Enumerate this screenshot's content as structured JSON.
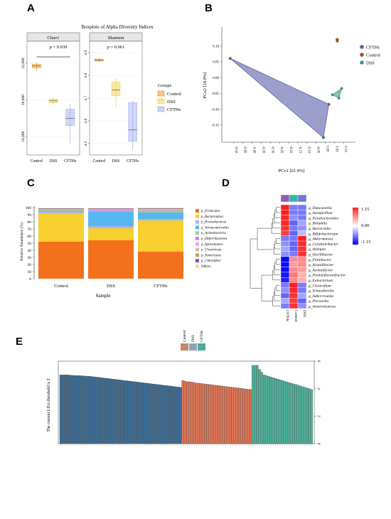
{
  "panel_letters": [
    "A",
    "B",
    "C",
    "D",
    "E"
  ],
  "chart_data": [
    {
      "panel": "A",
      "type": "boxplot",
      "title": "Boxplots of Alpha Diversity Indices",
      "legend_title": "Groups",
      "legend_position": "right",
      "groups": [
        {
          "name": "Control",
          "color": "#e8a33c"
        },
        {
          "name": "DSS",
          "color": "#f3d35a"
        },
        {
          "name": "CFTHs",
          "color": "#a9b6f2"
        }
      ],
      "facets": [
        {
          "name": "Chao1",
          "ylim": [
            17000,
            23200
          ],
          "yticks": [
            18000,
            20000,
            22000
          ],
          "ytick_labels": [
            "18,000",
            "20,000",
            "22,000"
          ],
          "annotation": "p = 0.039",
          "annotation_p": "p",
          "annotation_val": "= 0.039",
          "boxes": [
            {
              "group": "Control",
              "q1": 21750,
              "median": 21850,
              "q3": 21950,
              "min": 21600,
              "max": 22050
            },
            {
              "group": "DSS",
              "q1": 19850,
              "median": 19950,
              "q3": 20050,
              "min": 19700,
              "max": 20150
            },
            {
              "group": "CFTHs",
              "q1": 18600,
              "median": 19000,
              "q3": 19500,
              "min": 17600,
              "max": 19800
            }
          ]
        },
        {
          "name": "Shannon",
          "ylim": [
            4.45,
            4.95
          ],
          "yticks": [
            4.5,
            4.6,
            4.7,
            4.8,
            4.9
          ],
          "ytick_labels": [
            "4.5",
            "4.6",
            "4.7",
            "4.8",
            "4.9"
          ],
          "annotation": "p = 0.061",
          "annotation_p": "p",
          "annotation_val": "= 0.061",
          "boxes": [
            {
              "group": "Control",
              "q1": 4.862,
              "median": 4.868,
              "q3": 4.872,
              "min": 4.858,
              "max": 4.876
            },
            {
              "group": "DSS",
              "q1": 4.71,
              "median": 4.735,
              "q3": 4.77,
              "min": 4.66,
              "max": 4.79
            },
            {
              "group": "CFTHs",
              "q1": 4.51,
              "median": 4.56,
              "q3": 4.68,
              "min": 4.47,
              "max": 4.69
            }
          ]
        }
      ],
      "x_categories": [
        "Control",
        "DSS",
        "CFTHs"
      ]
    },
    {
      "panel": "B",
      "type": "scatter",
      "xlabel": "PCo1 [61.9%]",
      "ylabel": "PCo2 [18.9%]",
      "xlim": [
        -0.55,
        0.15
      ],
      "ylim": [
        -0.2,
        0.15
      ],
      "xticks": [
        -0.5,
        -0.45,
        -0.4,
        -0.35,
        -0.3,
        -0.25,
        -0.2,
        -0.15,
        -0.1,
        -0.05,
        0,
        0.05,
        0.1
      ],
      "xtick_labels": [
        "-0.50",
        "-0.45",
        "-0.40",
        "-0.35",
        "-0.30",
        "-0.25",
        "-0.20",
        "-0.15",
        "-0.10",
        "-0.05",
        "0.00",
        "0.05",
        "0.10"
      ],
      "yticks": [
        -0.15,
        -0.1,
        -0.05,
        0,
        0.05,
        0.1
      ],
      "ytick_labels": [
        "-0.15",
        "-0.10",
        "-0.05",
        "0.00",
        "0.05",
        "0.10"
      ],
      "legend_position": "right",
      "series": [
        {
          "name": "CFTHs",
          "color": "#5a5fa8",
          "points": [
            [
              -0.52,
              0.06
            ],
            [
              -0.01,
              -0.19
            ],
            [
              0.02,
              -0.085
            ]
          ]
        },
        {
          "name": "Control",
          "color": "#8b5a2b",
          "points": [
            [
              0.065,
              0.12
            ],
            [
              0.066,
              0.115
            ],
            [
              0.067,
              0.118
            ]
          ]
        },
        {
          "name": "DSS",
          "color": "#3a9a7a",
          "points": [
            [
              0.04,
              -0.055
            ],
            [
              0.075,
              -0.065
            ],
            [
              0.09,
              -0.035
            ]
          ]
        }
      ]
    },
    {
      "panel": "C",
      "type": "stacked-bar",
      "xlabel": "Sample",
      "ylabel": "Relative Abundance (%)",
      "ylim": [
        0,
        100
      ],
      "yticks": [
        0,
        10,
        20,
        30,
        40,
        50,
        60,
        70,
        80,
        90,
        100
      ],
      "categories": [
        "Control",
        "DSS",
        "CFTHs"
      ],
      "legend_position": "right",
      "series": [
        {
          "name": "p_Firmicutes",
          "color": "#f3711d",
          "values": [
            52,
            54,
            38
          ]
        },
        {
          "name": "p_Bacteroidota",
          "color": "#f7cf2e",
          "values": [
            40,
            17,
            44
          ]
        },
        {
          "name": "p_Proteobacteria",
          "color": "#a8b4f5",
          "values": [
            2,
            3,
            2
          ]
        },
        {
          "name": "p_Verrucomicrobia",
          "color": "#57b7ee",
          "values": [
            0.5,
            20,
            9
          ]
        },
        {
          "name": "p_Actinobacteria",
          "color": "#9bd28c",
          "values": [
            2,
            1,
            2.5
          ]
        },
        {
          "name": "p_Deferribacteres",
          "color": "#b890ee",
          "values": [
            0.5,
            1.5,
            0.5
          ]
        },
        {
          "name": "p_Spirochaetes",
          "color": "#eba8e8",
          "values": [
            0.5,
            0.5,
            1
          ]
        },
        {
          "name": "p_Uroviricota",
          "color": "#c0c0c0",
          "values": [
            0.5,
            1,
            1
          ]
        },
        {
          "name": "p_Tenericutes",
          "color": "#c39b5e",
          "values": [
            0.5,
            0.5,
            0.5
          ]
        },
        {
          "name": "p_Chloroflexi",
          "color": "#7e56b8",
          "values": [
            0.5,
            0.5,
            0.5
          ]
        },
        {
          "name": "Others",
          "color": "#eddda0",
          "values": [
            0.5,
            0.5,
            1
          ]
        }
      ]
    },
    {
      "panel": "D",
      "type": "heatmap",
      "columns": [
        "CFTHs",
        "Control",
        "DSS"
      ],
      "column_colors": [
        "#8b5fb5",
        "#3bb3a8",
        "#6b7ad6"
      ],
      "colorbar_ticks": [
        "1.15",
        "0.00",
        "-1.15"
      ],
      "rows": [
        {
          "name": "g_Duncaniella",
          "values": [
            1.15,
            -0.6,
            -0.6
          ]
        },
        {
          "name": "g_Azospirillum",
          "values": [
            1.15,
            -0.6,
            -0.6
          ]
        },
        {
          "name": "g_Parabacteroides",
          "values": [
            1.1,
            -0.5,
            -0.6
          ]
        },
        {
          "name": "g_Bilophila",
          "values": [
            1.1,
            -0.7,
            -0.4
          ]
        },
        {
          "name": "g_Bacteroides",
          "values": [
            1.05,
            -0.6,
            -0.5
          ]
        },
        {
          "name": "g_Bifidobacterium",
          "values": [
            1.0,
            -0.7,
            -0.3
          ]
        },
        {
          "name": "g_Akkermansia",
          "values": [
            -0.6,
            -0.6,
            1.15
          ]
        },
        {
          "name": "g_Colidextribacter",
          "values": [
            -0.5,
            -0.7,
            1.1
          ]
        },
        {
          "name": "g_Alistipes",
          "values": [
            -0.4,
            -0.7,
            1.05
          ]
        },
        {
          "name": "g_Oscillibacter",
          "values": [
            -0.5,
            -0.6,
            1.05
          ]
        },
        {
          "name": "g_Flintibacter",
          "values": [
            -1.15,
            0.6,
            0.6
          ]
        },
        {
          "name": "g_Acutalibacter",
          "values": [
            -1.1,
            0.5,
            0.6
          ]
        },
        {
          "name": "g_Acetatifactor",
          "values": [
            -1.1,
            0.6,
            0.5
          ]
        },
        {
          "name": "g_Pseudoflavonifractor",
          "values": [
            -1.05,
            0.7,
            0.4
          ]
        },
        {
          "name": "g_Eubacterium",
          "values": [
            -1.0,
            0.6,
            0.4
          ]
        },
        {
          "name": "g_Clostridium",
          "values": [
            -0.6,
            1.15,
            -0.6
          ]
        },
        {
          "name": "g_Schaedlerella",
          "values": [
            -0.5,
            1.1,
            -0.6
          ]
        },
        {
          "name": "g_Adlercreutzia",
          "values": [
            -0.7,
            1.05,
            -0.4
          ]
        },
        {
          "name": "g_Prevotella",
          "values": [
            -0.4,
            1.0,
            -0.7
          ]
        },
        {
          "name": "g_Anaerotruncus",
          "values": [
            -0.6,
            1.05,
            -0.5
          ]
        }
      ]
    },
    {
      "panel": "E",
      "type": "bar",
      "ylabel": "The current LDA threshold is 2",
      "ylim": [
        0,
        6
      ],
      "yticks": [
        0,
        2,
        4,
        6
      ],
      "legend": [
        {
          "name": "Control",
          "color": "#c4876a"
        },
        {
          "name": "DSS",
          "color": "#8fa3b8"
        },
        {
          "name": "CFTHs",
          "color": "#4aab98"
        }
      ],
      "series": [
        {
          "name": "DSS",
          "color": "#3d6c93",
          "values": [
            5.0,
            5.0,
            5.0,
            5.0,
            4.98,
            4.97,
            4.96,
            4.95,
            4.95,
            4.94,
            4.93,
            4.92,
            4.9,
            4.9,
            4.88,
            4.86,
            4.84,
            4.82,
            4.8,
            4.78,
            4.76,
            4.74,
            4.72,
            4.7,
            4.68,
            4.66,
            4.64,
            4.62,
            4.6,
            4.58,
            4.56,
            4.54,
            4.52,
            4.5,
            4.48,
            4.46,
            4.44,
            4.42,
            4.4,
            4.38,
            4.36,
            4.34,
            4.32,
            4.3,
            4.28,
            4.26,
            4.24,
            4.22,
            4.2,
            4.18,
            4.16,
            4.14,
            4.12,
            4.1
          ]
        },
        {
          "name": "Control",
          "color": "#e07556",
          "values": [
            4.6,
            4.55,
            4.5,
            4.5,
            4.48,
            4.45,
            4.42,
            4.4,
            4.38,
            4.36,
            4.34,
            4.32,
            4.3,
            4.28,
            4.26,
            4.24,
            4.22,
            4.2,
            4.18,
            4.16,
            4.14,
            4.12,
            4.1,
            4.08,
            4.06,
            4.04,
            4.02,
            4.0,
            3.98,
            3.96,
            3.94
          ]
        },
        {
          "name": "CFTHs",
          "color": "#4fb39c",
          "values": [
            5.7,
            5.7,
            5.7,
            5.4,
            5.2,
            5.0,
            4.95,
            4.9,
            4.85,
            4.8,
            4.75,
            4.7,
            4.65,
            4.6,
            4.55,
            4.5,
            4.45,
            4.4,
            4.35,
            4.3,
            4.25,
            4.2,
            4.15,
            4.1,
            4.05,
            4.0,
            3.95
          ]
        }
      ]
    }
  ]
}
